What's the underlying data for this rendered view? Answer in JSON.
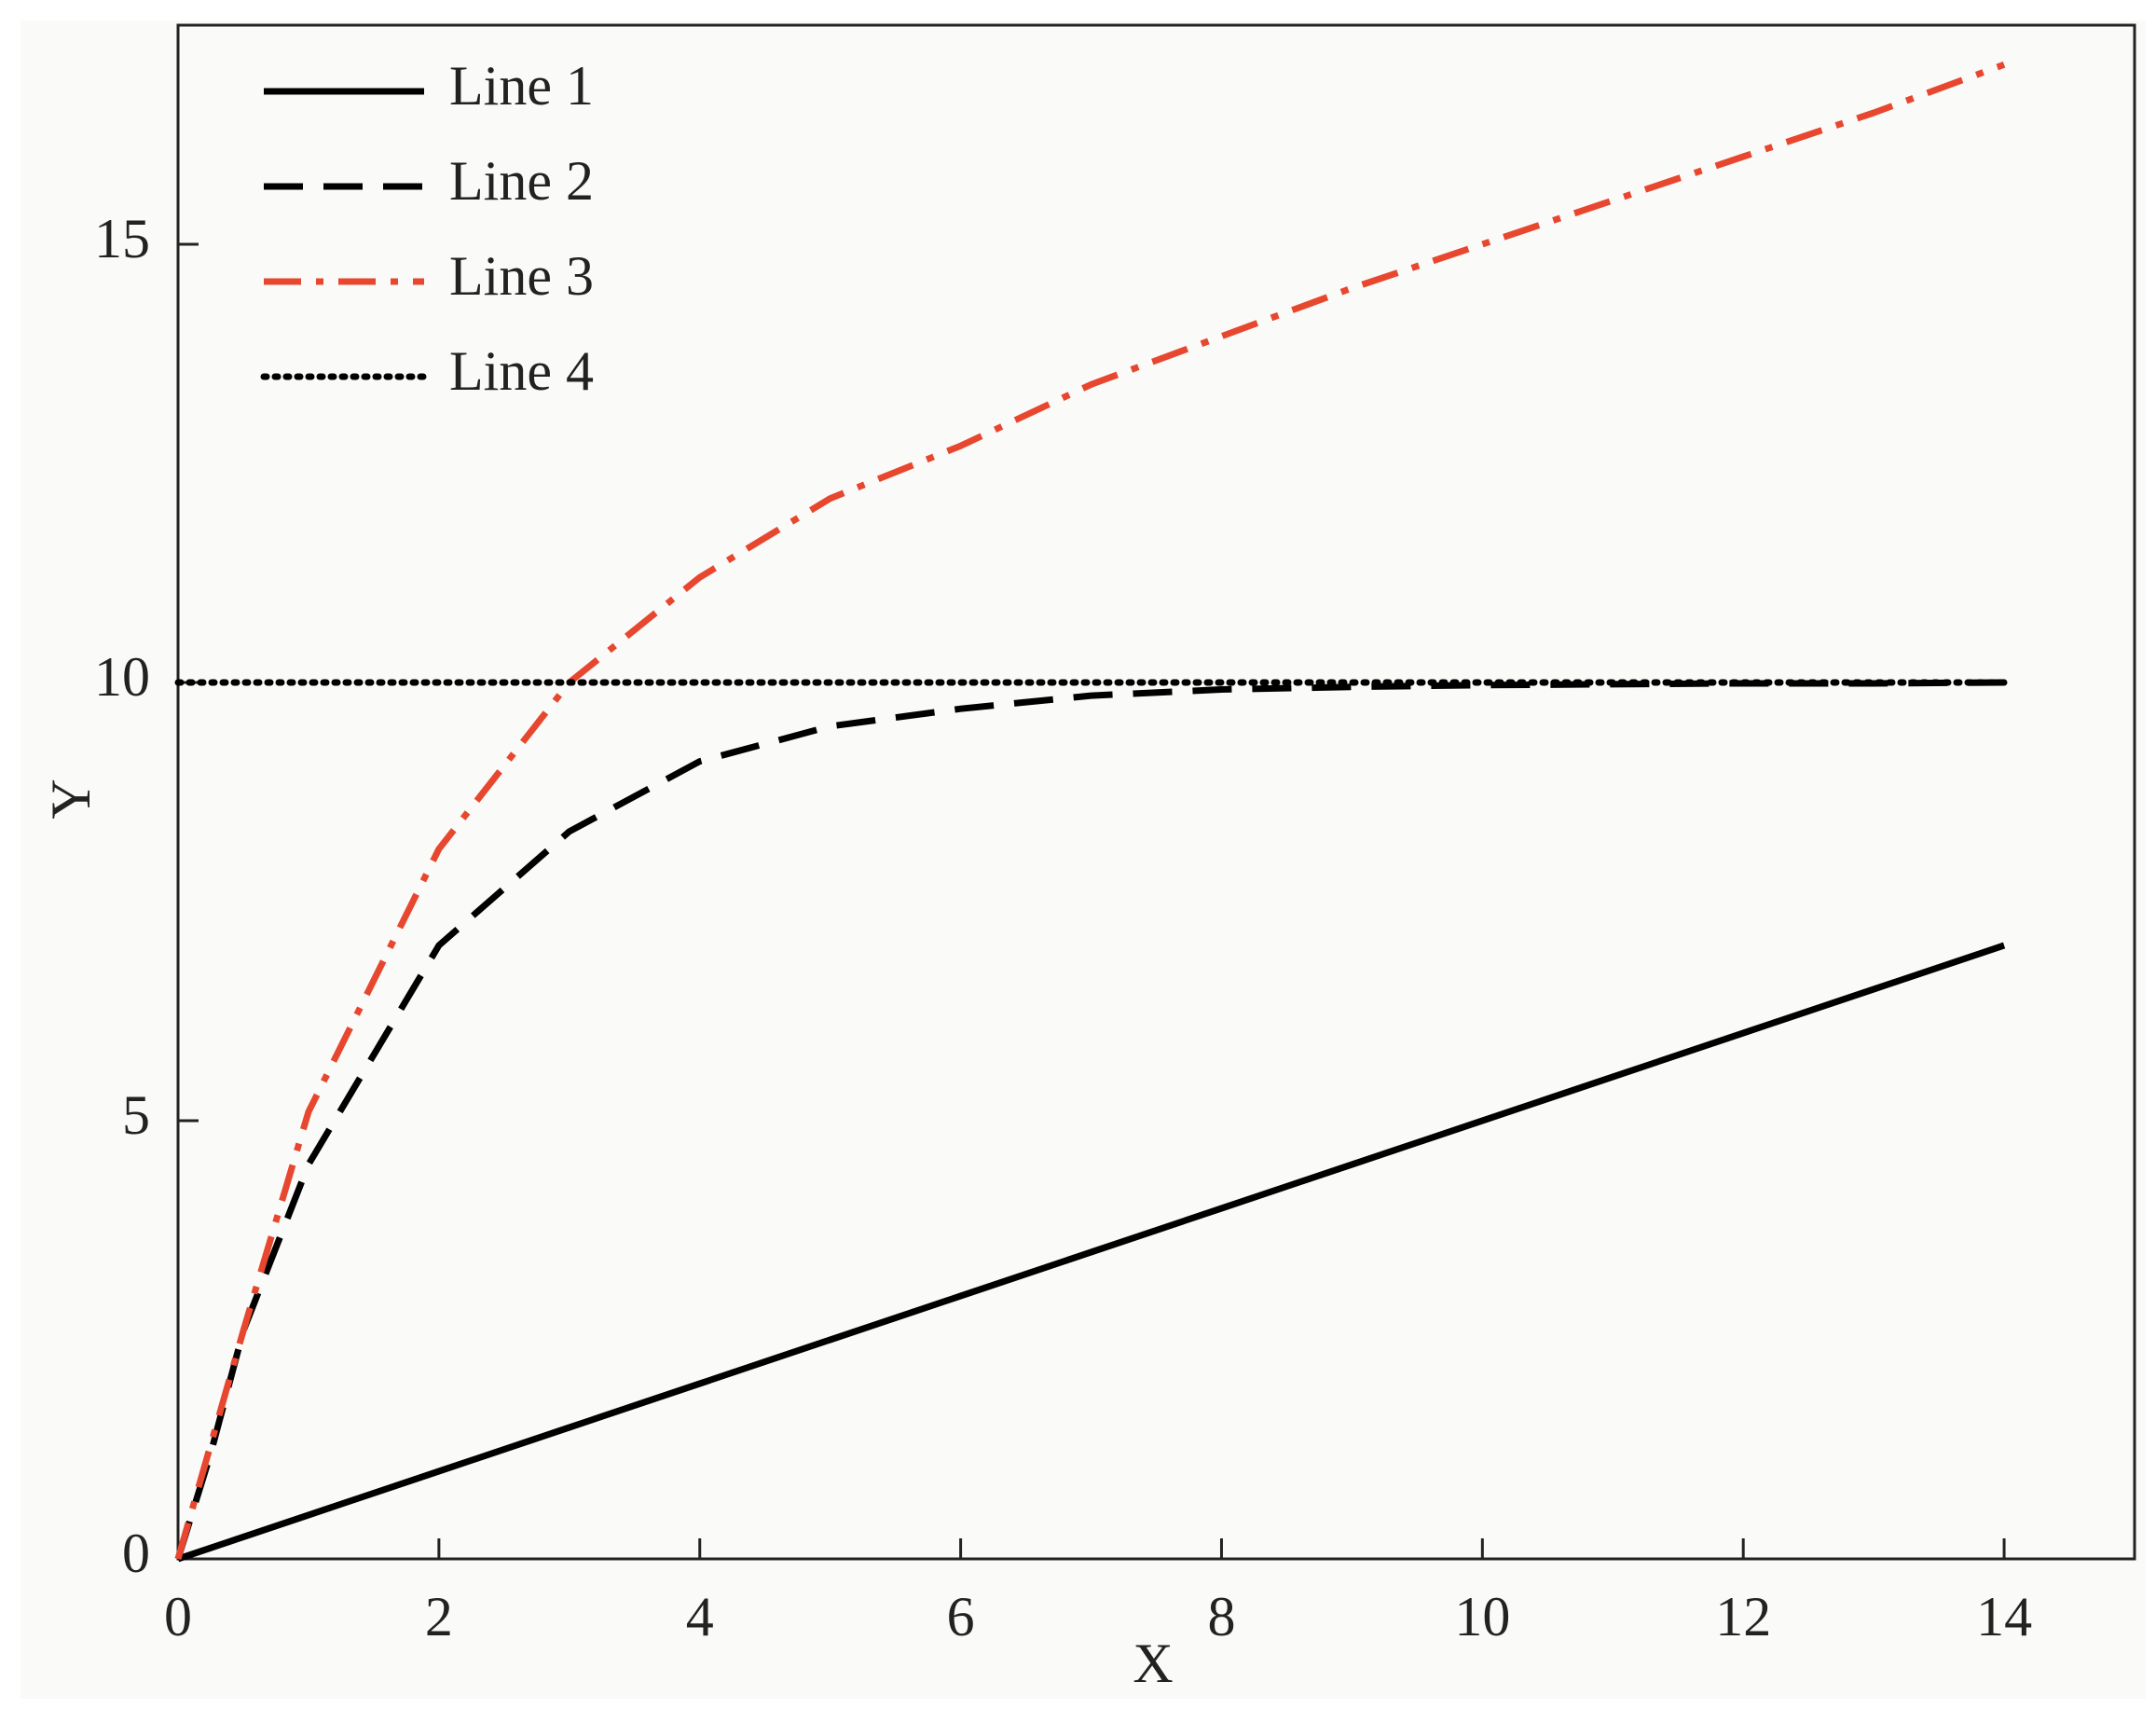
{
  "chart_data": {
    "type": "line",
    "x_label": "X",
    "y_label": "Y",
    "x": [
      0,
      0.25,
      0.5,
      1,
      2,
      3,
      4,
      5,
      6,
      7,
      8,
      9,
      10,
      11,
      12,
      13,
      14
    ],
    "series": [
      {
        "name": "Line 1",
        "color": "#000000",
        "linestyle": "solid",
        "values": [
          0,
          0.125,
          0.25,
          0.5,
          1,
          1.5,
          2,
          2.5,
          3,
          3.5,
          4,
          4.5,
          5,
          5.5,
          6,
          6.5,
          7
        ]
      },
      {
        "name": "Line 2",
        "color": "#000000",
        "linestyle": "dashed",
        "values": [
          0,
          1.2,
          2.6,
          4.5,
          7.0,
          8.3,
          9.1,
          9.5,
          9.7,
          9.85,
          9.92,
          9.95,
          9.97,
          9.98,
          9.99,
          9.99,
          10.0
        ]
      },
      {
        "name": "Line 3",
        "color": "#e8472f",
        "linestyle": "dashdot",
        "values": [
          0,
          1.3,
          2.6,
          5.1,
          8.1,
          10.0,
          11.2,
          12.1,
          12.7,
          13.4,
          13.95,
          14.5,
          15.0,
          15.5,
          16.0,
          16.5,
          17.05
        ]
      },
      {
        "name": "Line 4",
        "color": "#000000",
        "linestyle": "dotted",
        "values": [
          10,
          10,
          10,
          10,
          10,
          10,
          10,
          10,
          10,
          10,
          10,
          10,
          10,
          10,
          10,
          10,
          10
        ]
      }
    ],
    "xlim": [
      0,
      15
    ],
    "ylim": [
      0,
      17.5
    ],
    "xticks": [
      0,
      2,
      4,
      6,
      8,
      10,
      12,
      14
    ],
    "yticks": [
      0,
      5,
      10,
      15
    ],
    "legend": "upper left",
    "grid": false
  }
}
